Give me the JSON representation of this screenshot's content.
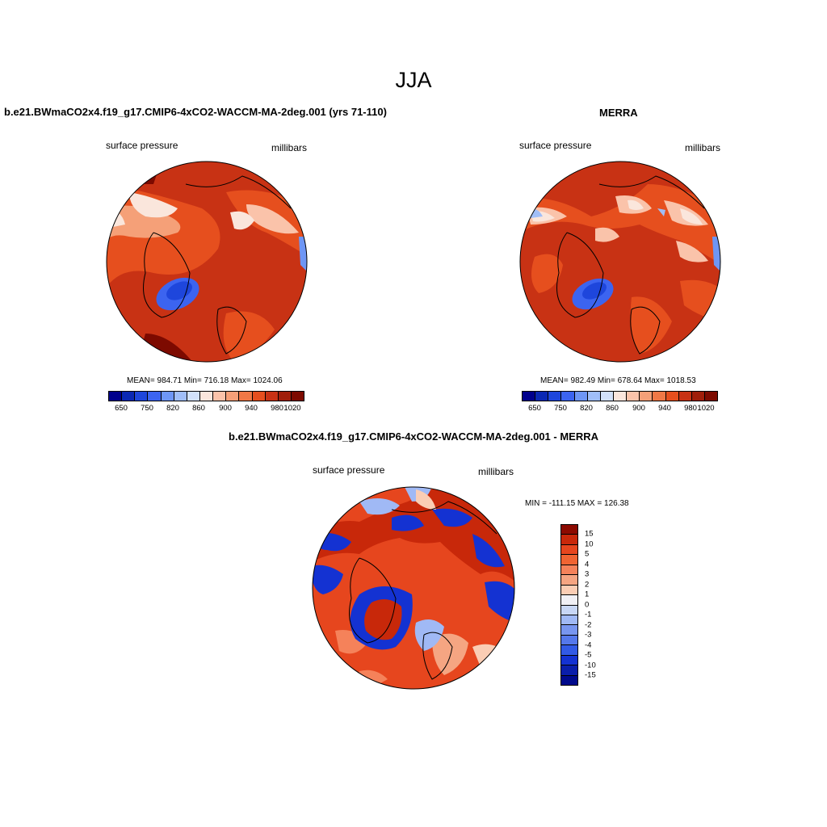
{
  "figure": {
    "title": "JJA"
  },
  "panels": {
    "model": {
      "title": "b.e21.BWmaCO2x4.f19_g17.CMIP6-4xCO2-WACCM-MA-2deg.001 (yrs 71-110)",
      "left_label": "surface pressure",
      "right_label": "millibars",
      "stats": "MEAN= 984.71  Min= 716.18  Max= 1024.06"
    },
    "obs": {
      "title": "MERRA",
      "left_label": "surface pressure",
      "right_label": "millibars",
      "stats": "MEAN= 982.49  Min= 678.64  Max= 1018.53"
    },
    "diff": {
      "title": "b.e21.BWmaCO2x4.f19_g17.CMIP6-4xCO2-WACCM-MA-2deg.001 - MERRA",
      "left_label": "surface pressure",
      "right_label": "millibars",
      "minmax": "MIN = -111.15 MAX = 126.38"
    }
  },
  "colorbar_abs": {
    "labels": [
      "650",
      "750",
      "820",
      "860",
      "900",
      "940",
      "980",
      "1020"
    ],
    "colors": [
      "#00008c",
      "#0a28b4",
      "#1e46dc",
      "#3c64f0",
      "#6e96f5",
      "#a0bef8",
      "#d2e1fa",
      "#fae6dc",
      "#fac3aa",
      "#f5a078",
      "#f07846",
      "#e64f1e",
      "#c83214",
      "#a01e0a",
      "#7d0a00"
    ]
  },
  "colorbar_diff": {
    "labels": [
      "15",
      "10",
      "5",
      "4",
      "3",
      "2",
      "1",
      "0",
      "-1",
      "-2",
      "-3",
      "-4",
      "-5",
      "-10",
      "-15"
    ],
    "colors": [
      "#8c0a00",
      "#c8280a",
      "#e6461e",
      "#f06432",
      "#f5825a",
      "#f5a582",
      "#facdb4",
      "#f0f0f5",
      "#c8d7f5",
      "#a0b9f5",
      "#7896f0",
      "#5578eb",
      "#325ae6",
      "#1432d2",
      "#0a1eaa",
      "#000a8c"
    ]
  },
  "chart_data": {
    "type": "map",
    "panels": [
      "model",
      "obs",
      "diff"
    ],
    "abs_levels": [
      650,
      750,
      820,
      860,
      900,
      940,
      980,
      1020
    ],
    "diff_levels": [
      15,
      10,
      5,
      4,
      3,
      2,
      1,
      0,
      -1,
      -2,
      -3,
      -4,
      -5,
      -10,
      -15
    ]
  }
}
